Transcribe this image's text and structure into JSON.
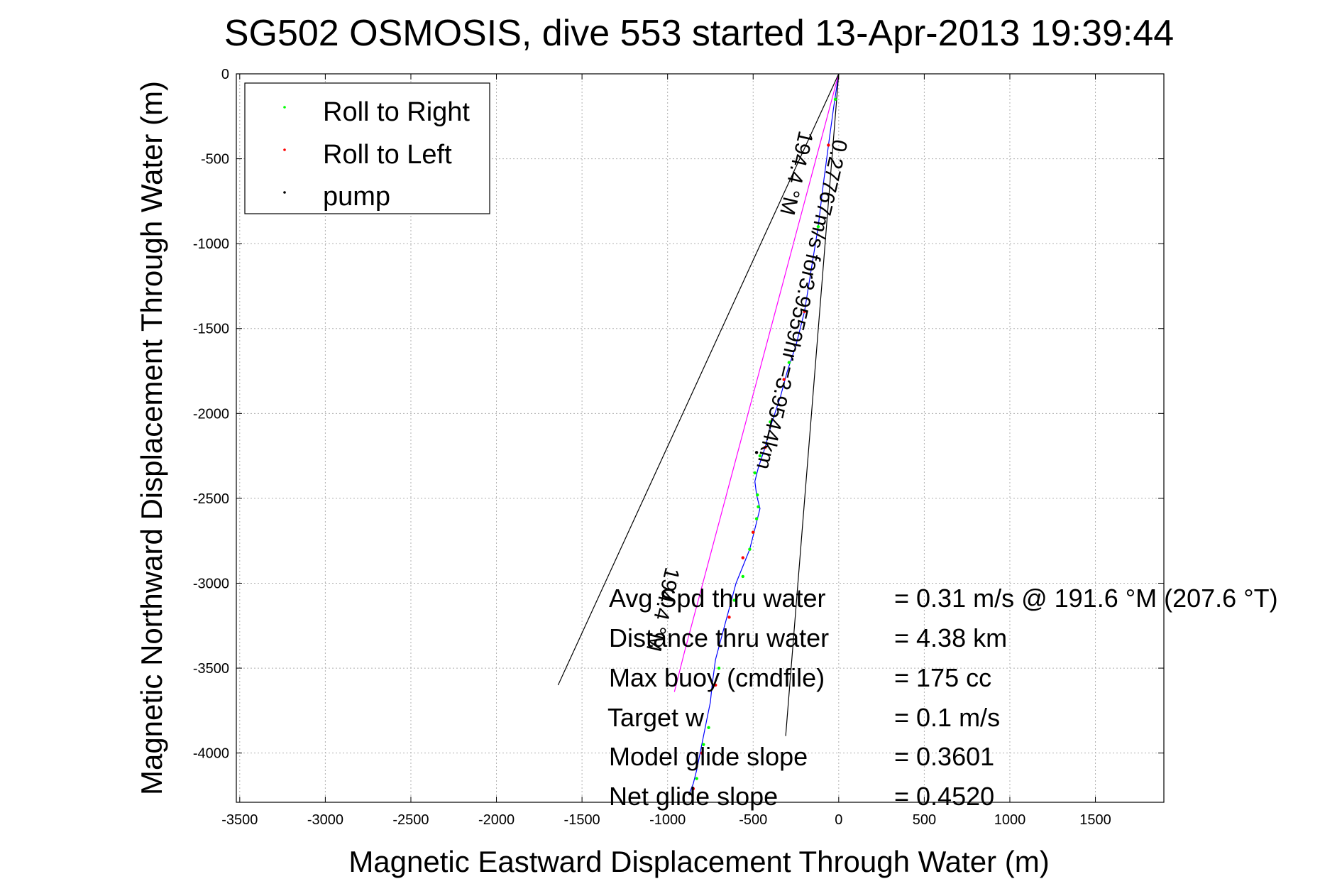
{
  "chart_data": {
    "type": "line",
    "title": "SG502 OSMOSIS, dive 553 started 13-Apr-2013 19:39:44",
    "xlabel": "Magnetic Eastward Displacement Through Water (m)",
    "ylabel": "Magnetic Northward Displacement Through Water (m)",
    "xlim": [
      -3520,
      1900
    ],
    "ylim": [
      -4290,
      0
    ],
    "xticks": [
      -3500,
      -3000,
      -2500,
      -2000,
      -1500,
      -1000,
      -500,
      0,
      500,
      1000,
      1500
    ],
    "yticks": [
      0,
      -500,
      -1000,
      -1500,
      -2000,
      -2500,
      -3000,
      -3500,
      -4000
    ],
    "grid": true,
    "legend": {
      "position": "top-left",
      "entries": [
        {
          "label": "Roll to Right",
          "color": "#00ff00"
        },
        {
          "label": "Roll to Left",
          "color": "#ff0000"
        },
        {
          "label": "pump",
          "color": "#000000"
        }
      ]
    },
    "series": [
      {
        "color": "#0000ff",
        "x": [
          0,
          -30,
          -60,
          -90,
          -120,
          -160,
          -200,
          -250,
          -300,
          -340,
          -390,
          -430,
          -470,
          -490,
          -480,
          -460,
          -480,
          -500,
          -520,
          -560,
          -600,
          -640,
          -680,
          -720,
          -740,
          -750,
          -770,
          -790,
          -810,
          -830,
          -850,
          -870
        ],
        "y": [
          0,
          -200,
          -420,
          -650,
          -900,
          -1150,
          -1400,
          -1600,
          -1750,
          -1900,
          -2050,
          -2200,
          -2320,
          -2400,
          -2480,
          -2560,
          -2640,
          -2720,
          -2800,
          -2900,
          -3000,
          -3150,
          -3300,
          -3450,
          -3600,
          -3700,
          -3800,
          -3900,
          -4000,
          -4100,
          -4180,
          -4230
        ]
      },
      {
        "color": "#ff00ff",
        "x": [
          0,
          -90,
          -180,
          -270,
          -360,
          -450,
          -540,
          -630,
          -720,
          -810,
          -900,
          -960
        ],
        "y": [
          0,
          -340,
          -680,
          -1020,
          -1360,
          -1700,
          -2040,
          -2380,
          -2720,
          -3060,
          -3400,
          -3640
        ]
      },
      {
        "color": "#000000",
        "x": [
          0,
          -1640
        ],
        "y": [
          0,
          -3600
        ]
      },
      {
        "color": "#000000",
        "x": [
          0,
          -310
        ],
        "y": [
          0,
          -3900
        ]
      }
    ],
    "markers": {
      "roll_right": {
        "color": "#00ff00",
        "x": [
          -20,
          -120,
          -290,
          -400,
          -460,
          -490,
          -475,
          -470,
          -480,
          -500,
          -520,
          -560,
          -610,
          -700,
          -760,
          -790,
          -830
        ],
        "y": [
          -150,
          -900,
          -1700,
          -2050,
          -2250,
          -2350,
          -2480,
          -2550,
          -2620,
          -2700,
          -2800,
          -2960,
          -3100,
          -3500,
          -3850,
          -3950,
          -4150
        ]
      },
      "roll_left": {
        "color": "#ff0000",
        "x": [
          -60,
          -200,
          -320,
          -430,
          -500,
          -560,
          -640,
          -720,
          -800,
          -850
        ],
        "y": [
          -420,
          -1400,
          -1800,
          -2200,
          -2700,
          -2850,
          -3200,
          -3600,
          -4000,
          -4210
        ]
      },
      "pump": {
        "color": "#000000",
        "x": [
          -480,
          -870
        ],
        "y": [
          -2230,
          -4240
        ]
      }
    },
    "annotations": [
      {
        "text": "0.27767m/s for3.9559hr =3.9544km",
        "x": -30,
        "y": -380,
        "angle": 103.2
      },
      {
        "text": "194.4 °M",
        "x": -230,
        "y": -330,
        "angle": 103.2
      },
      {
        "text": "194.4 °M",
        "x": -1010,
        "y": -2900,
        "angle": 103.2
      }
    ]
  },
  "info": {
    "rows": [
      {
        "label": "Avg Spd thru water",
        "value": "=  0.31 m/s @ 191.6 °M (207.6 °T)"
      },
      {
        "label": "Distance thru water",
        "value": "=  4.38 km"
      },
      {
        "label": "Max buoy (cmdfile)",
        "value": "= 175 cc"
      },
      {
        "label": "Target w",
        "value": "= 0.1 m/s"
      },
      {
        "label": "Model glide slope",
        "value": "= 0.3601"
      },
      {
        "label": "Net glide slope",
        "value": "= 0.4520"
      }
    ]
  }
}
